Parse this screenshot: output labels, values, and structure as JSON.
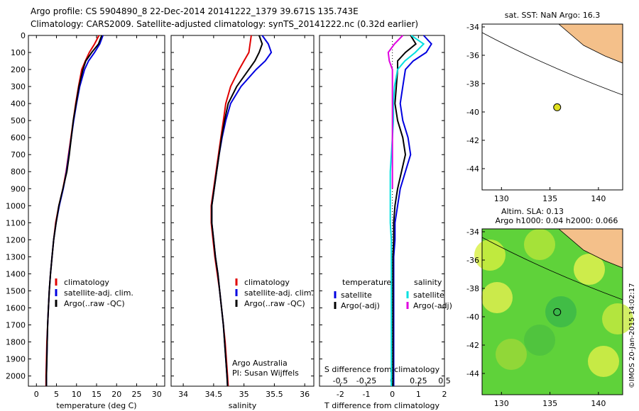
{
  "header": {
    "title_line1": "Argo profile: CS 5904890_8 22-Dec-2014 20141222_1379 39.671S 135.743E",
    "title_line2": "Climatology: CARS2009. Satellite-adjusted climatology: synTS_20141222.nc (0.32d earlier)"
  },
  "colors": {
    "climatology": "#e00000",
    "satellite": "#0000e0",
    "argo": "#000000",
    "cyan": "#00e0e0",
    "magenta": "#e000e0",
    "land": "#f4c08a",
    "marker": "#e0e020"
  },
  "chart_data": [
    {
      "type": "line",
      "name": "temperature-profile",
      "xlabel": "temperature (deg C)",
      "ylabel": "",
      "xlim": [
        -2,
        32
      ],
      "ylim": [
        2060,
        0
      ],
      "xticks": [
        0,
        5,
        10,
        15,
        20,
        25,
        30
      ],
      "yticks": [
        0,
        100,
        200,
        300,
        400,
        500,
        600,
        700,
        800,
        900,
        1000,
        1100,
        1200,
        1300,
        1400,
        1500,
        1600,
        1700,
        1800,
        1900,
        2000
      ],
      "legend": [
        "climatology",
        "satellite-adj. clim.",
        "Argo(..raw -QC)"
      ],
      "series": [
        {
          "name": "climatology",
          "x": [
            15.6,
            14.5,
            13.2,
            12.2,
            11.3,
            10.5,
            9.8,
            9.2,
            8.6,
            8.0,
            7.4,
            6.6,
            5.6,
            4.8,
            4.3,
            3.9,
            3.5,
            3.2,
            3.0,
            2.8,
            2.6,
            2.5,
            2.4,
            2.4
          ],
          "y": [
            0,
            50,
            100,
            150,
            200,
            300,
            400,
            500,
            600,
            700,
            800,
            900,
            1000,
            1100,
            1200,
            1300,
            1400,
            1500,
            1600,
            1700,
            1800,
            1900,
            2000,
            2060
          ]
        },
        {
          "name": "satellite-adj. clim.",
          "x": [
            16.6,
            15.8,
            14.5,
            13.0,
            12.0,
            10.8,
            10.0,
            9.3,
            8.7,
            8.1,
            7.5,
            6.7,
            5.7,
            4.9,
            4.3,
            3.9,
            3.5,
            3.2,
            3.0,
            2.8,
            2.7,
            2.6,
            2.5,
            2.5
          ],
          "y": [
            0,
            50,
            100,
            150,
            200,
            300,
            400,
            500,
            600,
            700,
            800,
            900,
            1000,
            1100,
            1200,
            1300,
            1400,
            1500,
            1600,
            1700,
            1800,
            1900,
            2000,
            2060
          ]
        },
        {
          "name": "Argo(..raw -QC)",
          "x": [
            16.3,
            15.5,
            13.8,
            12.3,
            11.6,
            10.6,
            9.9,
            9.2,
            8.7,
            8.2,
            7.6,
            6.6,
            5.6,
            4.9,
            4.3,
            3.9,
            3.5,
            3.2,
            3.0,
            2.8,
            2.7,
            2.6,
            2.5,
            2.5
          ],
          "y": [
            0,
            50,
            100,
            150,
            200,
            300,
            400,
            500,
            600,
            700,
            800,
            900,
            1000,
            1100,
            1200,
            1300,
            1400,
            1500,
            1600,
            1700,
            1800,
            1900,
            2000,
            2060
          ]
        }
      ]
    },
    {
      "type": "line",
      "name": "salinity-profile",
      "xlabel": "salinity",
      "xlim": [
        33.8,
        36.15
      ],
      "ylim": [
        2060,
        0
      ],
      "xticks": [
        34,
        34.5,
        35,
        35.5,
        36
      ],
      "legend": [
        "climatology",
        "satellite-adj. clim.",
        "Argo(..raw -QC)"
      ],
      "annotation": [
        "Argo Australia",
        "PI: Susan Wijffels"
      ],
      "series": [
        {
          "name": "climatology",
          "x": [
            35.12,
            35.1,
            35.08,
            35.0,
            34.92,
            34.78,
            34.7,
            34.66,
            34.62,
            34.58,
            34.54,
            34.5,
            34.46,
            34.46,
            34.49,
            34.52,
            34.56,
            34.6,
            34.63,
            34.66,
            34.69,
            34.71,
            34.73,
            34.74
          ],
          "y": [
            0,
            50,
            100,
            150,
            200,
            300,
            400,
            500,
            600,
            700,
            800,
            900,
            1000,
            1100,
            1200,
            1300,
            1400,
            1500,
            1600,
            1700,
            1800,
            1900,
            2000,
            2060
          ]
        },
        {
          "name": "satellite-adj. clim.",
          "x": [
            35.3,
            35.4,
            35.45,
            35.35,
            35.2,
            34.95,
            34.78,
            34.7,
            34.64,
            34.59,
            34.55,
            34.51,
            34.47,
            34.47,
            34.5,
            34.53,
            34.57,
            34.6,
            34.63,
            34.66,
            34.68,
            34.7,
            34.72,
            34.73
          ],
          "y": [
            0,
            50,
            100,
            150,
            200,
            300,
            400,
            500,
            600,
            700,
            800,
            900,
            1000,
            1100,
            1200,
            1300,
            1400,
            1500,
            1600,
            1700,
            1800,
            1900,
            2000,
            2060
          ]
        },
        {
          "name": "Argo(..raw -QC)",
          "x": [
            35.25,
            35.3,
            35.25,
            35.18,
            35.08,
            34.88,
            34.74,
            34.68,
            34.63,
            34.59,
            34.55,
            34.51,
            34.47,
            34.47,
            34.5,
            34.53,
            34.57,
            34.6,
            34.63,
            34.66,
            34.68,
            34.7,
            34.72,
            34.73
          ],
          "y": [
            0,
            50,
            100,
            150,
            200,
            300,
            400,
            500,
            600,
            700,
            800,
            900,
            1000,
            1100,
            1200,
            1300,
            1400,
            1500,
            1600,
            1700,
            1800,
            1900,
            2000,
            2060
          ]
        }
      ]
    },
    {
      "type": "line",
      "name": "difference-profile",
      "xlabel": "T difference from climatology",
      "xlabel_top": "S difference from climatology",
      "xlim": [
        -2.8,
        2.0
      ],
      "ylim": [
        2060,
        0
      ],
      "xticks": [
        -2,
        -1,
        0,
        1,
        2
      ],
      "xticks_s": [
        -0.5,
        -0.25,
        0,
        0.25,
        0.5
      ],
      "legend_t": {
        "title": "temperature",
        "items": [
          "satellite",
          "Argo(-adj)"
        ]
      },
      "legend_s": {
        "title": "salinity",
        "items": [
          "satellite",
          "Argo(-adj)"
        ]
      },
      "series": [
        {
          "name": "T satellite",
          "x": [
            1.2,
            1.5,
            1.3,
            0.8,
            0.5,
            0.4,
            0.3,
            0.4,
            0.6,
            0.7,
            0.5,
            0.3,
            0.2,
            0.1,
            0.1,
            0.05,
            0.05,
            0.05,
            0.05,
            0.05,
            0.05,
            0.05,
            0.05,
            0.05
          ],
          "y": [
            0,
            50,
            100,
            150,
            200,
            300,
            400,
            500,
            600,
            700,
            800,
            900,
            1000,
            1100,
            1200,
            1300,
            1400,
            1500,
            1600,
            1700,
            1800,
            1900,
            2000,
            2060
          ]
        },
        {
          "name": "T Argo(-adj)",
          "x": [
            0.7,
            0.9,
            0.5,
            0.2,
            0.2,
            0.15,
            0.1,
            0.2,
            0.4,
            0.5,
            0.35,
            0.2,
            0.1,
            0.05,
            0.05,
            0.02,
            0.02,
            0.02,
            0.02,
            0.02,
            0.02,
            0.02,
            0.02,
            0.02
          ],
          "y": [
            0,
            50,
            100,
            150,
            200,
            300,
            400,
            500,
            600,
            700,
            800,
            900,
            1000,
            1100,
            1200,
            1300,
            1400,
            1500,
            1600,
            1700,
            1800,
            1900,
            2000,
            2060
          ]
        },
        {
          "name": "S satellite",
          "x": [
            0.18,
            0.3,
            0.22,
            0.12,
            0.05,
            0.02,
            0.01,
            0.01,
            0.0,
            -0.01,
            -0.02,
            -0.02,
            -0.02,
            -0.02,
            -0.01,
            -0.01,
            -0.01,
            -0.01,
            -0.01,
            -0.01,
            -0.01,
            -0.01,
            -0.01,
            -0.01
          ],
          "y": [
            0,
            50,
            100,
            150,
            200,
            300,
            400,
            500,
            600,
            700,
            800,
            900,
            1000,
            1100,
            1200,
            1300,
            1400,
            1500,
            1600,
            1700,
            1800,
            1900,
            2000,
            2060
          ]
        },
        {
          "name": "S Argo(-adj)",
          "x": [
            0.1,
            0.02,
            -0.04,
            -0.03,
            0.0,
            0.0,
            0.0,
            0.0,
            0.0,
            0.0,
            0.0,
            0.0
          ],
          "y": [
            0,
            50,
            100,
            150,
            200,
            300,
            400,
            500,
            600,
            700,
            800,
            900
          ]
        }
      ]
    },
    {
      "type": "scatter",
      "name": "sst-map",
      "title": "sat. SST: NaN Argo: 16.3",
      "xlim": [
        128,
        142.5
      ],
      "ylim": [
        -45.5,
        -33.8
      ],
      "xticks": [
        130,
        135,
        140
      ],
      "yticks": [
        -34,
        -36,
        -38,
        -40,
        -42,
        -44
      ],
      "float_position": {
        "lon": 135.743,
        "lat": -39.671
      }
    },
    {
      "type": "heatmap",
      "name": "sla-map",
      "title_line1": "Altim. SLA: 0.13",
      "title_line2": "Argo h1000: 0.04 h2000: 0.066",
      "xlim": [
        128,
        142.5
      ],
      "ylim": [
        -45.5,
        -33.8
      ],
      "xticks": [
        130,
        135,
        140
      ],
      "yticks": [
        -34,
        -36,
        -38,
        -40,
        -42,
        -44
      ],
      "float_position": {
        "lon": 135.743,
        "lat": -39.671
      }
    }
  ],
  "credit": "©IMOS 20-Jan-2015 14:02:17"
}
